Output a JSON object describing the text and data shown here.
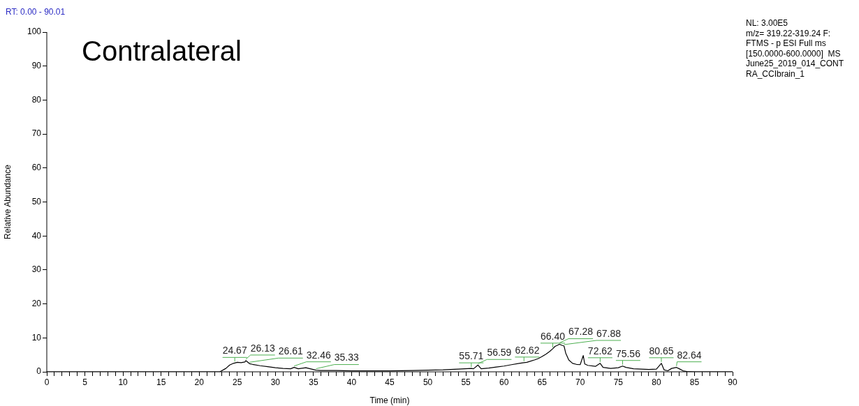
{
  "chart_data": {
    "type": "line",
    "title": "Contralateral",
    "xlabel": "Time (min)",
    "ylabel": "Relative Abundance",
    "xlim": [
      0,
      90
    ],
    "ylim": [
      0,
      100
    ],
    "xticks": [
      0,
      {
        "value": 1,
        "label": null
      },
      {
        "value": 2,
        "label": null
      },
      {
        "value": 3,
        "label": null
      },
      {
        "value": 4,
        "label": null
      },
      5,
      {
        "value": 6,
        "label": null
      },
      {
        "value": 7,
        "label": null
      },
      {
        "value": 8,
        "label": null
      },
      {
        "value": 9,
        "label": null
      },
      10,
      {
        "value": 11,
        "label": null
      },
      {
        "value": 12,
        "label": null
      },
      {
        "value": 13,
        "label": null
      },
      {
        "value": 14,
        "label": null
      },
      15,
      {
        "value": 16,
        "label": null
      },
      {
        "value": 17,
        "label": null
      },
      {
        "value": 18,
        "label": null
      },
      {
        "value": 19,
        "label": null
      },
      20,
      {
        "value": 21,
        "label": null
      },
      {
        "value": 22,
        "label": null
      },
      {
        "value": 23,
        "label": null
      },
      {
        "value": 24,
        "label": null
      },
      25,
      {
        "value": 26,
        "label": null
      },
      {
        "value": 27,
        "label": null
      },
      {
        "value": 28,
        "label": null
      },
      {
        "value": 29,
        "label": null
      },
      30,
      {
        "value": 31,
        "label": null
      },
      {
        "value": 32,
        "label": null
      },
      {
        "value": 33,
        "label": null
      },
      {
        "value": 34,
        "label": null
      },
      35,
      {
        "value": 36,
        "label": null
      },
      {
        "value": 37,
        "label": null
      },
      {
        "value": 38,
        "label": null
      },
      {
        "value": 39,
        "label": null
      },
      40,
      {
        "value": 41,
        "label": null
      },
      {
        "value": 42,
        "label": null
      },
      {
        "value": 43,
        "label": null
      },
      {
        "value": 44,
        "label": null
      },
      45,
      {
        "value": 46,
        "label": null
      },
      {
        "value": 47,
        "label": null
      },
      {
        "value": 48,
        "label": null
      },
      {
        "value": 49,
        "label": null
      },
      50,
      {
        "value": 51,
        "label": null
      },
      {
        "value": 52,
        "label": null
      },
      {
        "value": 53,
        "label": null
      },
      {
        "value": 54,
        "label": null
      },
      55,
      {
        "value": 56,
        "label": null
      },
      {
        "value": 57,
        "label": null
      },
      {
        "value": 58,
        "label": null
      },
      {
        "value": 59,
        "label": null
      },
      60,
      {
        "value": 61,
        "label": null
      },
      {
        "value": 62,
        "label": null
      },
      {
        "value": 63,
        "label": null
      },
      {
        "value": 64,
        "label": null
      },
      65,
      {
        "value": 66,
        "label": null
      },
      {
        "value": 67,
        "label": null
      },
      {
        "value": 68,
        "label": null
      },
      {
        "value": 69,
        "label": null
      },
      70,
      {
        "value": 71,
        "label": null
      },
      {
        "value": 72,
        "label": null
      },
      {
        "value": 73,
        "label": null
      },
      {
        "value": 74,
        "label": null
      },
      75,
      {
        "value": 76,
        "label": null
      },
      {
        "value": 77,
        "label": null
      },
      {
        "value": 78,
        "label": null
      },
      {
        "value": 79,
        "label": null
      },
      80,
      {
        "value": 81,
        "label": null
      },
      {
        "value": 82,
        "label": null
      },
      {
        "value": 83,
        "label": null
      },
      {
        "value": 84,
        "label": null
      },
      85,
      {
        "value": 86,
        "label": null
      },
      {
        "value": 87,
        "label": null
      },
      {
        "value": 88,
        "label": null
      },
      {
        "value": 89,
        "label": null
      },
      90
    ],
    "yticks": [
      0,
      10,
      20,
      30,
      40,
      50,
      60,
      70,
      80,
      90,
      100
    ],
    "grid": false,
    "legend": false,
    "marker": "none",
    "line_style": "solid",
    "series": [
      {
        "color": "#000000",
        "x": [
          0,
          10,
          20,
          22.7,
          23.5,
          24,
          24.5,
          24.67,
          25,
          25.5,
          26,
          26.13,
          26.61,
          27,
          28,
          29,
          30,
          31,
          32,
          32.46,
          33,
          34,
          35.33,
          36,
          38,
          40,
          42,
          45,
          48,
          50,
          52,
          54,
          55.71,
          56,
          56.59,
          57,
          58,
          59,
          60,
          61,
          62,
          62.62,
          63,
          64,
          64.5,
          65,
          65.5,
          66,
          66.4,
          66.7,
          67,
          67.28,
          67.6,
          67.88,
          68.1,
          68.5,
          69,
          69.5,
          70,
          70.4,
          70.6,
          71,
          72,
          72.62,
          73,
          74,
          75,
          75.56,
          76,
          77,
          78,
          79,
          80,
          80.65,
          81,
          81.5,
          82,
          82.64,
          83,
          83.5,
          84,
          85,
          90
        ],
        "values": [
          0,
          0,
          0,
          0,
          1,
          2,
          2.5,
          2.6,
          2.8,
          2.7,
          2.9,
          3.3,
          2.4,
          2.2,
          1.8,
          1.5,
          1.2,
          1.0,
          0.9,
          1.3,
          0.9,
          1.2,
          0.5,
          0.4,
          0.4,
          0.3,
          0.3,
          0.3,
          0.4,
          0.5,
          0.6,
          0.8,
          1.0,
          0.9,
          2.0,
          0.9,
          1.1,
          1.4,
          1.7,
          2.1,
          2.5,
          2.7,
          2.8,
          3.5,
          3.9,
          4.5,
          5.2,
          6.0,
          6.8,
          7.5,
          7.8,
          8.1,
          7.8,
          7.6,
          5.5,
          3.5,
          2.5,
          2.2,
          2.1,
          4.8,
          2.3,
          1.9,
          1.6,
          2.5,
          1.3,
          1.0,
          1.2,
          1.7,
          1.3,
          0.9,
          0.8,
          0.7,
          0.8,
          2.5,
          0.6,
          0.3,
          1.0,
          1.3,
          0.9,
          0.3,
          0.1,
          0,
          0
        ]
      }
    ],
    "annotations": [
      "RT: 0.00 - 90.01",
      "NL: 3.00E5",
      "m/z= 319.22-319.24 F:",
      "FTMS - p ESI Full ms",
      "[150.0000-600.0000]  MS",
      "June25_2019_014_CONT",
      "RA_CCIbrain_1",
      {
        "text": "24.67",
        "x": 24.67,
        "y": 2.6
      },
      {
        "text": "26.13",
        "x": 26.13,
        "y": 3.3
      },
      {
        "text": "26.61",
        "x": 26.61,
        "y": 2.4
      },
      {
        "text": "32.46",
        "x": 32.46,
        "y": 1.3
      },
      {
        "text": "35.33",
        "x": 35.33,
        "y": 0.5
      },
      {
        "text": "55.71",
        "x": 55.71,
        "y": 1.0
      },
      {
        "text": "56.59",
        "x": 56.59,
        "y": 2.0
      },
      {
        "text": "62.62",
        "x": 62.62,
        "y": 2.7
      },
      {
        "text": "66.40",
        "x": 66.4,
        "y": 6.8
      },
      {
        "text": "67.28",
        "x": 67.28,
        "y": 8.1
      },
      {
        "text": "67.88",
        "x": 67.88,
        "y": 7.6
      },
      {
        "text": "72.62",
        "x": 72.62,
        "y": 2.5
      },
      {
        "text": "75.56",
        "x": 75.56,
        "y": 1.7
      },
      {
        "text": "80.65",
        "x": 80.65,
        "y": 2.5
      },
      {
        "text": "82.64",
        "x": 82.64,
        "y": 1.3
      }
    ]
  }
}
